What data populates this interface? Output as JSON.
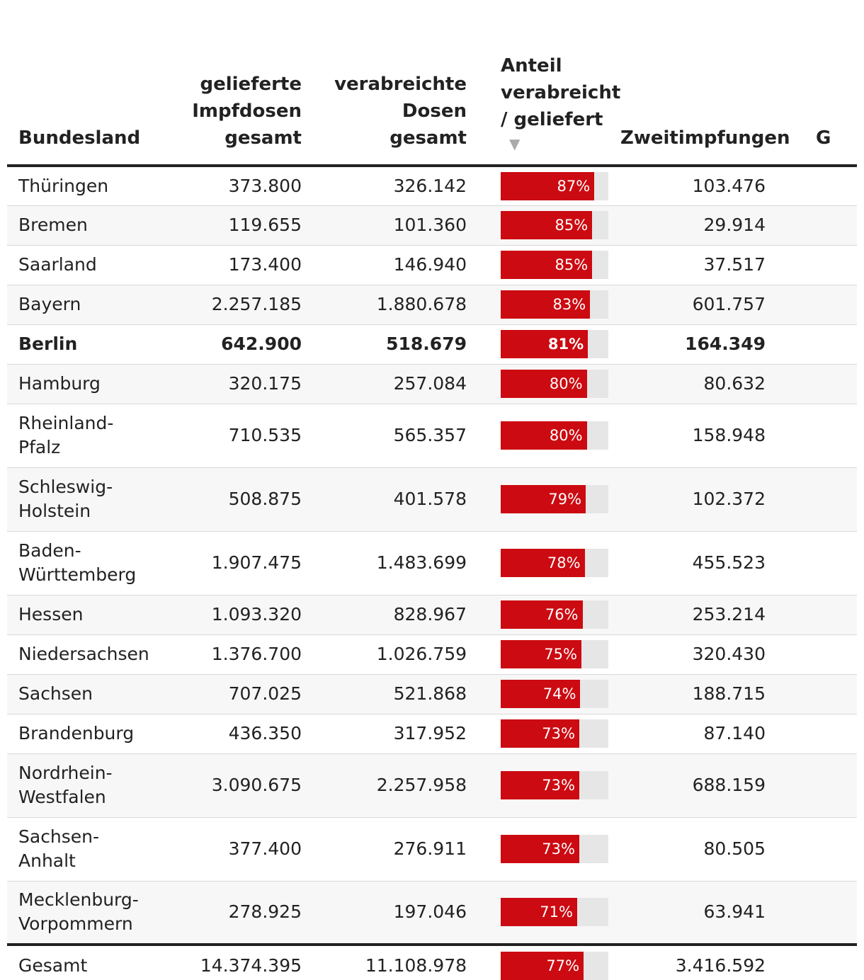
{
  "columns": {
    "land": "Bundesland",
    "delivered": [
      "gelieferte",
      "Impfdosen",
      "gesamt"
    ],
    "administered": [
      "verabreichte",
      "Dosen",
      "gesamt"
    ],
    "share": [
      "Anteil",
      "verabreicht",
      "/ geliefert"
    ],
    "second": "Zweitimpfungen",
    "extra_partial": "G"
  },
  "sort_icon": "triangle-down-icon",
  "colors": {
    "bar": "#cc0a11",
    "track": "#e6e6e6"
  },
  "rows": [
    {
      "land": "Thüringen",
      "delivered": "373.800",
      "administered": "326.142",
      "share_label": "87%",
      "share": 0.87,
      "second": "103.476"
    },
    {
      "land": "Bremen",
      "delivered": "119.655",
      "administered": "101.360",
      "share_label": "85%",
      "share": 0.85,
      "second": "29.914"
    },
    {
      "land": "Saarland",
      "delivered": "173.400",
      "administered": "146.940",
      "share_label": "85%",
      "share": 0.85,
      "second": "37.517"
    },
    {
      "land": "Bayern",
      "delivered": "2.257.185",
      "administered": "1.880.678",
      "share_label": "83%",
      "share": 0.83,
      "second": "601.757"
    },
    {
      "land": "Berlin",
      "delivered": "642.900",
      "administered": "518.679",
      "share_label": "81%",
      "share": 0.81,
      "second": "164.349",
      "bold": true
    },
    {
      "land": "Hamburg",
      "delivered": "320.175",
      "administered": "257.084",
      "share_label": "80%",
      "share": 0.8,
      "second": "80.632"
    },
    {
      "land": "Rheinland-\nPfalz",
      "delivered": "710.535",
      "administered": "565.357",
      "share_label": "80%",
      "share": 0.8,
      "second": "158.948",
      "tall": true
    },
    {
      "land": "Schleswig-\nHolstein",
      "delivered": "508.875",
      "administered": "401.578",
      "share_label": "79%",
      "share": 0.79,
      "second": "102.372",
      "tall": true
    },
    {
      "land": "Baden-\nWürttemberg",
      "delivered": "1.907.475",
      "administered": "1.483.699",
      "share_label": "78%",
      "share": 0.78,
      "second": "455.523",
      "tall": true
    },
    {
      "land": "Hessen",
      "delivered": "1.093.320",
      "administered": "828.967",
      "share_label": "76%",
      "share": 0.76,
      "second": "253.214"
    },
    {
      "land": "Niedersachsen",
      "delivered": "1.376.700",
      "administered": "1.026.759",
      "share_label": "75%",
      "share": 0.75,
      "second": "320.430"
    },
    {
      "land": "Sachsen",
      "delivered": "707.025",
      "administered": "521.868",
      "share_label": "74%",
      "share": 0.74,
      "second": "188.715"
    },
    {
      "land": "Brandenburg",
      "delivered": "436.350",
      "administered": "317.952",
      "share_label": "73%",
      "share": 0.73,
      "second": "87.140"
    },
    {
      "land": "Nordrhein-\nWestfalen",
      "delivered": "3.090.675",
      "administered": "2.257.958",
      "share_label": "73%",
      "share": 0.73,
      "second": "688.159",
      "tall": true
    },
    {
      "land": "Sachsen-\nAnhalt",
      "delivered": "377.400",
      "administered": "276.911",
      "share_label": "73%",
      "share": 0.73,
      "second": "80.505",
      "tall": true
    },
    {
      "land": "Mecklenburg-\nVorpommern",
      "delivered": "278.925",
      "administered": "197.046",
      "share_label": "71%",
      "share": 0.71,
      "second": "63.941",
      "tall": true
    }
  ],
  "total": {
    "land": "Gesamt",
    "delivered": "14.374.395",
    "administered": "11.108.978",
    "share_label": "77%",
    "share": 0.77,
    "second": "3.416.592"
  }
}
